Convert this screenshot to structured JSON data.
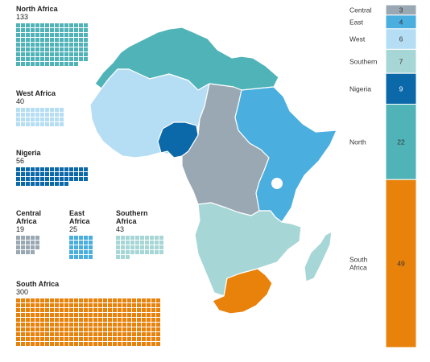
{
  "chart_data": {
    "type": "waffle-map-stacked-bar",
    "groups": [
      {
        "name": "North Africa",
        "value": 133,
        "color": "#4fb3b8"
      },
      {
        "name": "West Africa",
        "value": 40,
        "color": "#b5ddf3"
      },
      {
        "name": "Nigeria",
        "value": 56,
        "color": "#0b68a9"
      },
      {
        "name": "Central Africa",
        "value": 19,
        "color": "#9aa8b3"
      },
      {
        "name": "East Africa",
        "value": 25,
        "color": "#4aaedf"
      },
      {
        "name": "Southern Africa",
        "value": 43,
        "color": "#a7d6d6"
      },
      {
        "name": "South Africa",
        "value": 300,
        "color": "#e8820b"
      }
    ],
    "stacked_bar": [
      {
        "label": "Central",
        "value": 3,
        "color": "#9aa8b3"
      },
      {
        "label": "East",
        "value": 4,
        "color": "#4aaedf"
      },
      {
        "label": "West",
        "value": 6,
        "color": "#b5ddf3"
      },
      {
        "label": "Southern",
        "value": 7,
        "color": "#a7d6d6"
      },
      {
        "label": "Nigeria",
        "value": 9,
        "color": "#0b68a9"
      },
      {
        "label": "North",
        "value": 22,
        "color": "#4fb3b8"
      },
      {
        "label": "South\nAfrica",
        "value": 49,
        "color": "#e8820b"
      }
    ],
    "map_colors": {
      "north": "#4fb3b8",
      "west": "#b5ddf3",
      "nigeria": "#0b68a9",
      "central": "#9aa8b3",
      "east": "#4aaedf",
      "southern": "#a7d6d6",
      "south_africa": "#e8820b"
    }
  }
}
